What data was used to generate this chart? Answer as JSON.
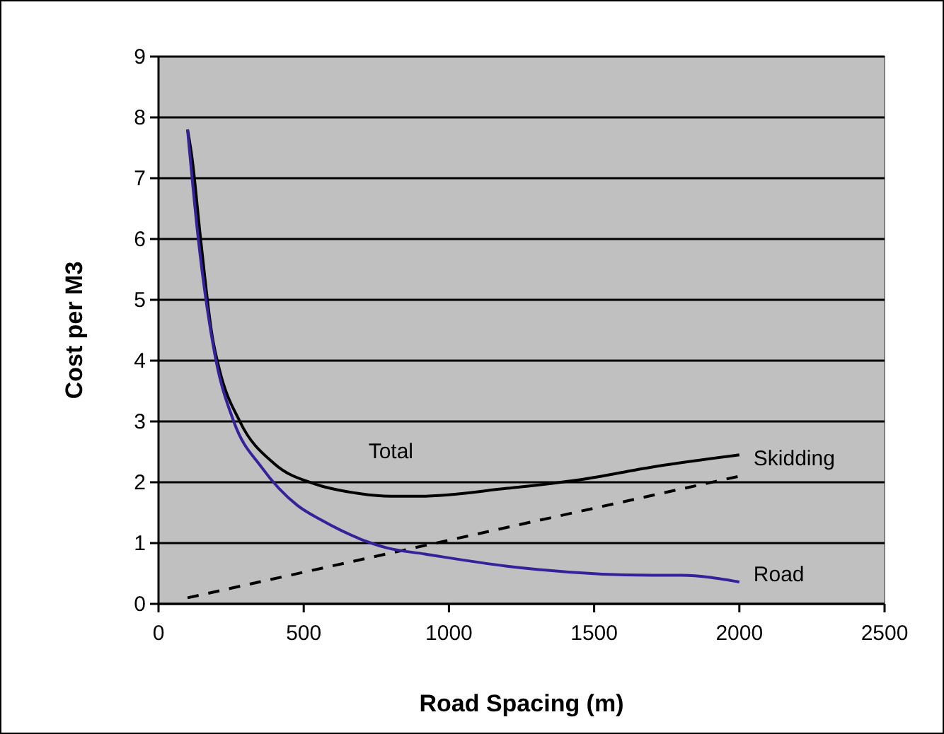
{
  "chart_data": {
    "type": "line",
    "xlabel": "Road Spacing (m)",
    "ylabel": "Cost per M3",
    "xlim": [
      0,
      2500
    ],
    "ylim": [
      0,
      9
    ],
    "xticks": [
      0,
      500,
      1000,
      1500,
      2000,
      2500
    ],
    "yticks": [
      0,
      1,
      2,
      3,
      4,
      5,
      6,
      7,
      8,
      9
    ],
    "grid": "y",
    "marker": "none",
    "series": [
      {
        "name": "Total",
        "color": "#000000",
        "line_style": "solid",
        "x": [
          100,
          115,
          145,
          185,
          210,
          280,
          400,
          540,
          670,
          800,
          900,
          1200,
          1450,
          1700,
          2000
        ],
        "values": [
          7.8,
          7.35,
          6,
          4.4,
          3.85,
          3,
          2.3,
          1.97,
          1.83,
          1.77,
          1.77,
          1.9,
          2.04,
          2.25,
          2.45
        ]
      },
      {
        "name": "Skidding",
        "color": "#000000",
        "line_style": "dashed",
        "x": [
          100,
          2000
        ],
        "values": [
          0.1,
          2.1
        ]
      },
      {
        "name": "Road",
        "color": "#33229a",
        "line_style": "solid",
        "x": [
          100,
          137,
          194,
          259,
          356,
          478,
          560,
          787,
          917,
          1200,
          1700,
          1800,
          2000
        ],
        "values": [
          7.8,
          6,
          4.1,
          3,
          2.24,
          1.62,
          1.38,
          0.92,
          0.82,
          0.62,
          0.47,
          0.47,
          0.36
        ]
      }
    ]
  }
}
